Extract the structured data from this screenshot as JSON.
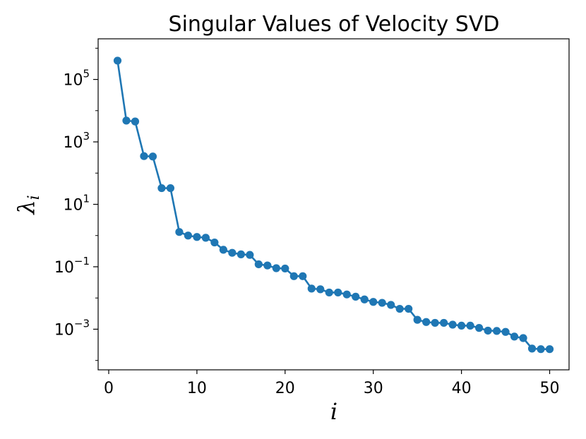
{
  "chart_data": {
    "type": "line",
    "title": "Singular Values of Velocity SVD",
    "xlabel": "i",
    "ylabel": "λ",
    "ylabel_subscript": "i",
    "yscale": "log",
    "xlim": [
      -1.2,
      52.2
    ],
    "ylim": [
      5e-05,
      2000000
    ],
    "x_ticks": [
      0,
      10,
      20,
      30,
      40,
      50
    ],
    "x_tick_labels": [
      "0",
      "10",
      "20",
      "30",
      "40",
      "50"
    ],
    "y_ticks": [
      0.001,
      0.1,
      10,
      1000,
      100000
    ],
    "y_tick_labels": [
      {
        "base": "10",
        "exp": "−3"
      },
      {
        "base": "10",
        "exp": "−1"
      },
      {
        "base": "10",
        "exp": "1"
      },
      {
        "base": "10",
        "exp": "3"
      },
      {
        "base": "10",
        "exp": "5"
      }
    ],
    "color": "#1f77b4",
    "series": [
      {
        "name": "singular values",
        "x": [
          1,
          2,
          3,
          4,
          5,
          6,
          7,
          8,
          9,
          10,
          11,
          12,
          13,
          14,
          15,
          16,
          17,
          18,
          19,
          20,
          21,
          22,
          23,
          24,
          25,
          26,
          27,
          28,
          29,
          30,
          31,
          32,
          33,
          34,
          35,
          36,
          37,
          38,
          39,
          40,
          41,
          42,
          43,
          44,
          45,
          46,
          47,
          48,
          49,
          50
        ],
        "values": [
          400000,
          4800,
          4500,
          350,
          340,
          33,
          33,
          1.3,
          1.0,
          0.9,
          0.85,
          0.6,
          0.35,
          0.28,
          0.25,
          0.24,
          0.12,
          0.11,
          0.09,
          0.088,
          0.05,
          0.05,
          0.02,
          0.019,
          0.015,
          0.015,
          0.013,
          0.011,
          0.009,
          0.0075,
          0.007,
          0.006,
          0.0045,
          0.0045,
          0.002,
          0.0017,
          0.0016,
          0.0016,
          0.0014,
          0.0013,
          0.0013,
          0.0011,
          0.0009,
          0.00088,
          0.00082,
          0.00058,
          0.00052,
          0.00024,
          0.00023,
          0.00023
        ]
      }
    ]
  }
}
